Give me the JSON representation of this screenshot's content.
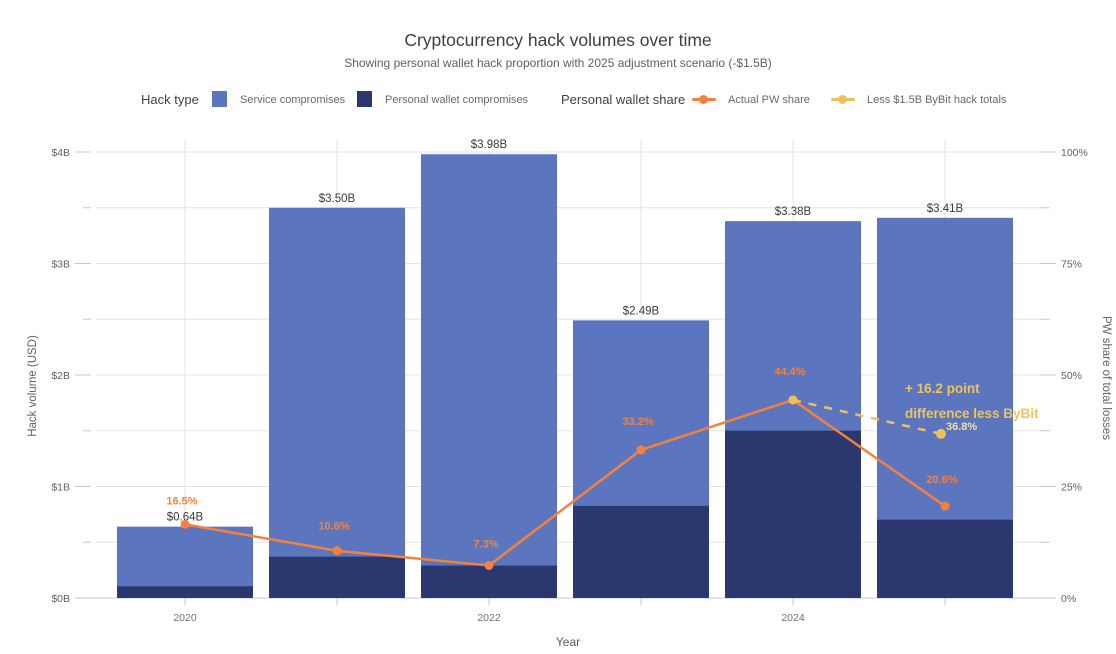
{
  "header": {
    "title": "Cryptocurrency hack volumes over time",
    "subtitle": "Showing personal wallet hack proportion with 2025 adjustment scenario (-$1.5B)"
  },
  "legend": {
    "hack_type_label": "Hack type",
    "service_label": "Service compromises",
    "personal_label": "Personal wallet compromises",
    "pw_share_label": "Personal wallet share",
    "actual_label": "Actual PW share",
    "adjusted_label": "Less $1.5B ByBit hack totals"
  },
  "colors": {
    "service": "#5B76BE",
    "personal": "#2A386F",
    "actual": "#F5813C",
    "adjusted": "#EFC05A",
    "adjusted_value_text": "#F6DCA0",
    "annotation_text": "#F1C355",
    "grid": "#E3E3E3",
    "axis_line": "#C9C9C9",
    "tick_text": "#616161",
    "year_text": "#6B7075",
    "bar_label_text": "#3A3A3A",
    "axis_title_text": "#5F6368"
  },
  "chart_data": {
    "type": "bar+line (stacked bars, dual y-axis percentage lines)",
    "x_years": [
      2020,
      2021,
      2022,
      2023,
      2024,
      2025
    ],
    "x_tick_labels": [
      "2020",
      "",
      "2022",
      "",
      "2024",
      ""
    ],
    "xlabel": "Year",
    "bars": {
      "stack_order": [
        "Personal wallet compromises (bottom)",
        "Service compromises (top)"
      ],
      "totals_busd": [
        0.64,
        3.5,
        3.98,
        2.49,
        3.38,
        3.41
      ],
      "total_labels": [
        "$0.64B",
        "$3.50B",
        "$3.98B",
        "$2.49B",
        "$3.38B",
        "$3.41B"
      ]
    },
    "lines": {
      "actual_pw_share_pct": [
        16.5,
        10.6,
        7.3,
        33.2,
        44.4,
        20.6
      ],
      "actual_labels": [
        "16.5%",
        "10.6%",
        "7.3%",
        "33.2%",
        "44.4%",
        "20.6%"
      ],
      "adjusted": {
        "years": [
          2024,
          2025
        ],
        "values_pct": [
          44.4,
          36.8
        ],
        "end_label": "36.8%",
        "style": "dashed"
      }
    },
    "annotation": {
      "line1": "+ 16.2 point",
      "line2": "difference less ByBit"
    },
    "y_left": {
      "label": "Hack volume (USD)",
      "tick_labels": [
        "$0B",
        "$1B",
        "$2B",
        "$3B",
        "$4B"
      ],
      "lim_busd": [
        0,
        4
      ]
    },
    "y_right": {
      "label": "PW share of total losses",
      "tick_labels": [
        "0%",
        "25%",
        "50%",
        "75%",
        "100%"
      ],
      "lim_pct": [
        0,
        100
      ]
    },
    "grid": "horizontal every $0.5B, vertical at each year"
  }
}
